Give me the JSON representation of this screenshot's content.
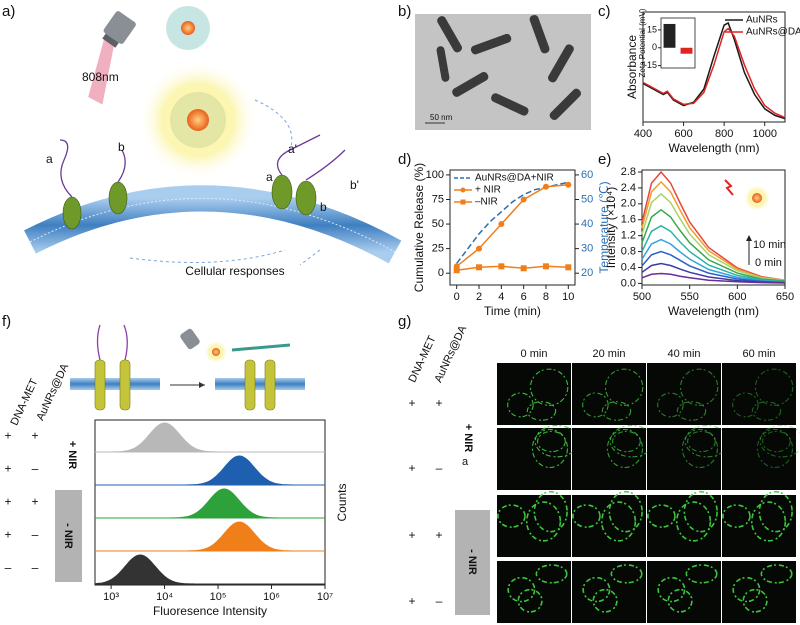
{
  "panels": {
    "a": {
      "label": "a)",
      "laser": "808nm",
      "strand_labels": [
        "a",
        "b",
        "a'",
        "b'",
        "a",
        "b"
      ],
      "caption": "Cellular responses"
    },
    "b": {
      "label": "b)",
      "scale_bar": "50 nm"
    },
    "c": {
      "label": "c)"
    },
    "d": {
      "label": "d)"
    },
    "e": {
      "label": "e)"
    },
    "f": {
      "label": "f)",
      "columns": [
        "DNA-MET",
        "AuNRs@DA"
      ],
      "rows": [
        [
          "+",
          "+"
        ],
        [
          "+",
          "–"
        ],
        [
          "+",
          "+"
        ],
        [
          "+",
          "–"
        ],
        [
          "–",
          "–"
        ]
      ],
      "groups": [
        "+ NIR",
        "- NIR"
      ]
    },
    "g": {
      "label": "g)",
      "columns": [
        "DNA-MET",
        "AuNRs@DA"
      ],
      "times": [
        "0 min",
        "20 min",
        "40 min",
        "60 min"
      ],
      "rows": [
        [
          "+",
          "+"
        ],
        [
          "+",
          "–"
        ],
        [
          "+",
          "+"
        ],
        [
          "+",
          "–"
        ]
      ],
      "groups": [
        "+ NIR",
        "- NIR"
      ],
      "mark": "a"
    }
  },
  "chart_data": [
    {
      "type": "line",
      "xlabel": "Wavelength (nm)",
      "ylabel": "Absorbance",
      "xlim": [
        400,
        1100
      ],
      "xticks": [
        400,
        600,
        800,
        1000
      ],
      "ylim": [
        0,
        1
      ],
      "legend": "upper right",
      "x": [
        400,
        450,
        500,
        520,
        550,
        600,
        650,
        700,
        750,
        800,
        820,
        850,
        900,
        950,
        1000,
        1050,
        1100
      ],
      "series": [
        {
          "name": "AuNRs",
          "color": "#1a1a1a",
          "values": [
            0.35,
            0.3,
            0.25,
            0.27,
            0.2,
            0.15,
            0.18,
            0.3,
            0.6,
            0.88,
            0.9,
            0.75,
            0.45,
            0.25,
            0.12,
            0.06,
            0.03
          ]
        },
        {
          "name": "AuNRs@DA",
          "color": "#e02424",
          "values": [
            0.36,
            0.31,
            0.26,
            0.28,
            0.21,
            0.16,
            0.17,
            0.27,
            0.52,
            0.82,
            0.85,
            0.78,
            0.52,
            0.3,
            0.15,
            0.08,
            0.04
          ]
        }
      ],
      "inset": {
        "type": "bar",
        "ylabel": "Zeta Potential (mV)",
        "ylim": [
          -17,
          25
        ],
        "yticks": [
          15,
          0,
          -15
        ],
        "values": [
          20,
          -5
        ],
        "colors": [
          "#222222",
          "#e02424"
        ]
      }
    },
    {
      "type": "line",
      "xlabel": "Time (min)",
      "ylabel": "Cumulative Release (%)",
      "y2label": "Temperature (℃)",
      "xlim": [
        -0.6,
        10.6
      ],
      "xticks": [
        0,
        2,
        4,
        6,
        8,
        10
      ],
      "ylim": [
        -12,
        105
      ],
      "yticks": [
        0,
        25,
        50,
        75,
        100
      ],
      "y2lim": [
        15.2,
        62
      ],
      "y2ticks": [
        20,
        30,
        40,
        50,
        60
      ],
      "legend": "upper left",
      "series": [
        {
          "name": "AuNRs@DA+NIR",
          "color": "#2a6fb5",
          "axis": "y2",
          "linestyle": "dashed",
          "x": [
            0,
            1,
            2,
            3,
            4,
            5,
            6,
            7,
            8,
            9,
            10
          ],
          "values": [
            24,
            30,
            36,
            41,
            45,
            49,
            52,
            54,
            55,
            56,
            57
          ]
        },
        {
          "name": "+ NIR",
          "color": "#f07f1a",
          "marker": "circle",
          "x": [
            0,
            2,
            4,
            6,
            8,
            10
          ],
          "values": [
            7,
            25,
            50,
            75,
            88,
            90
          ]
        },
        {
          "name": "–NIR",
          "color": "#f07f1a",
          "marker": "square",
          "x": [
            0,
            2,
            4,
            6,
            8,
            10
          ],
          "values": [
            3,
            6,
            7,
            5,
            7,
            6
          ]
        }
      ]
    },
    {
      "type": "line",
      "xlabel": "Wavelength (nm)",
      "ylabel": "Intensity (×10⁴)",
      "xlim": [
        500,
        650
      ],
      "xticks": [
        500,
        550,
        600,
        650
      ],
      "ylim": [
        -0.04,
        2.85
      ],
      "yticks": [
        {
          "value": 0,
          "label": "0.0"
        },
        {
          "value": 0.4,
          "label": "0.4"
        },
        {
          "value": 0.8,
          "label": "0.8"
        },
        {
          "value": 1.2,
          "label": "1.2"
        },
        {
          "value": 1.6,
          "label": "1.6"
        },
        {
          "value": 2.0,
          "label": "2.0"
        },
        {
          "value": 2.4,
          "label": "2.4"
        },
        {
          "value": 2.8,
          "label": "2.8"
        }
      ],
      "annotations": [
        "10 min",
        "0 min"
      ],
      "x": [
        500,
        510,
        520,
        530,
        540,
        550,
        570,
        600,
        625,
        650
      ],
      "series": [
        {
          "color": "#e8473c",
          "values": [
            1.54,
            2.52,
            2.8,
            2.52,
            2.02,
            1.54,
            0.9,
            0.39,
            0.17,
            0.08
          ]
        },
        {
          "color": "#f39a2b",
          "values": [
            1.4,
            2.3,
            2.55,
            2.3,
            1.84,
            1.4,
            0.82,
            0.36,
            0.15,
            0.08
          ]
        },
        {
          "color": "#a8d46a",
          "values": [
            1.24,
            2.03,
            2.25,
            2.03,
            1.62,
            1.24,
            0.72,
            0.32,
            0.14,
            0.07
          ]
        },
        {
          "color": "#3aa84a",
          "values": [
            1.02,
            1.67,
            1.85,
            1.67,
            1.33,
            1.02,
            0.59,
            0.26,
            0.11,
            0.06
          ]
        },
        {
          "color": "#2bb3a6",
          "values": [
            0.8,
            1.31,
            1.45,
            1.31,
            1.04,
            0.8,
            0.46,
            0.2,
            0.09,
            0.04
          ]
        },
        {
          "color": "#36a3dc",
          "values": [
            0.61,
            0.99,
            1.1,
            0.99,
            0.79,
            0.61,
            0.35,
            0.15,
            0.07,
            0.03
          ]
        },
        {
          "color": "#2c62c4",
          "values": [
            0.44,
            0.72,
            0.8,
            0.72,
            0.58,
            0.44,
            0.26,
            0.11,
            0.05,
            0.02
          ]
        },
        {
          "color": "#3b3aa8",
          "values": [
            0.28,
            0.45,
            0.5,
            0.45,
            0.36,
            0.28,
            0.16,
            0.07,
            0.03,
            0.02
          ]
        },
        {
          "color": "#6a2c9a",
          "values": [
            0.14,
            0.23,
            0.25,
            0.23,
            0.18,
            0.14,
            0.08,
            0.04,
            0.02,
            0.01
          ]
        }
      ]
    },
    {
      "type": "ridgeline",
      "xlabel": "Fluoresence Intensity",
      "ylabel": "Counts",
      "xscale": "log",
      "xlim": [
        500,
        10000000
      ],
      "xticks": [
        {
          "value": 1000,
          "label": "10³"
        },
        {
          "value": 10000,
          "label": "10⁴"
        },
        {
          "value": 100000,
          "label": "10⁵"
        },
        {
          "value": 1000000,
          "label": "10⁶"
        },
        {
          "value": 10000000,
          "label": "10⁷"
        }
      ],
      "series": [
        {
          "color": "#b8b8b8",
          "peak": 10000
        },
        {
          "color": "#1f5fb0",
          "peak": 250000
        },
        {
          "color": "#2ea23a",
          "peak": 130000
        },
        {
          "color": "#f07f1a",
          "peak": 250000
        },
        {
          "color": "#333333",
          "peak": 3500
        }
      ]
    }
  ]
}
